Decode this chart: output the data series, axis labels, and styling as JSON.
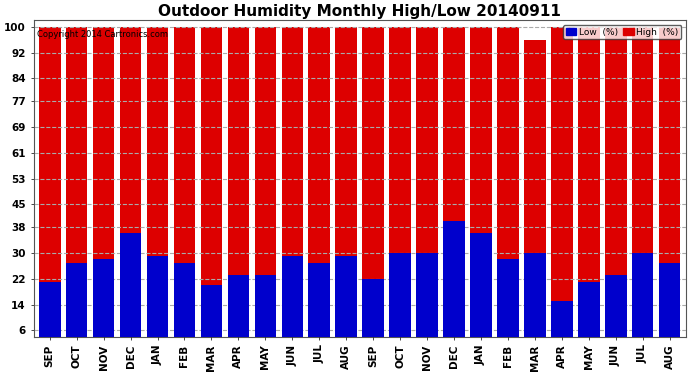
{
  "title": "Outdoor Humidity Monthly High/Low 20140911",
  "copyright": "Copyright 2014 Cartronics.com",
  "categories": [
    "SEP",
    "OCT",
    "NOV",
    "DEC",
    "JAN",
    "FEB",
    "MAR",
    "APR",
    "MAY",
    "JUN",
    "JUL",
    "AUG",
    "SEP",
    "OCT",
    "NOV",
    "DEC",
    "JAN",
    "FEB",
    "MAR",
    "APR",
    "MAY",
    "JUN",
    "JUL",
    "AUG"
  ],
  "high_values": [
    100,
    100,
    100,
    100,
    100,
    100,
    100,
    100,
    100,
    100,
    100,
    100,
    100,
    100,
    100,
    100,
    100,
    100,
    96,
    100,
    100,
    100,
    100,
    100
  ],
  "low_values": [
    21,
    27,
    28,
    36,
    29,
    27,
    20,
    23,
    23,
    29,
    27,
    29,
    22,
    30,
    30,
    40,
    36,
    28,
    30,
    15,
    21,
    23,
    30,
    27
  ],
  "bar_color_high": "#dd0000",
  "bar_color_low": "#0000cc",
  "background_color": "#ffffff",
  "plot_bg_color": "#ffffff",
  "grid_color": "#aaaaaa",
  "yticks": [
    6,
    14,
    22,
    30,
    38,
    45,
    53,
    61,
    69,
    77,
    84,
    92,
    100
  ],
  "ylim": [
    4,
    102
  ],
  "title_fontsize": 11,
  "tick_fontsize": 7.5,
  "legend_low_label": "Low  (%)",
  "legend_high_label": "High  (%)"
}
